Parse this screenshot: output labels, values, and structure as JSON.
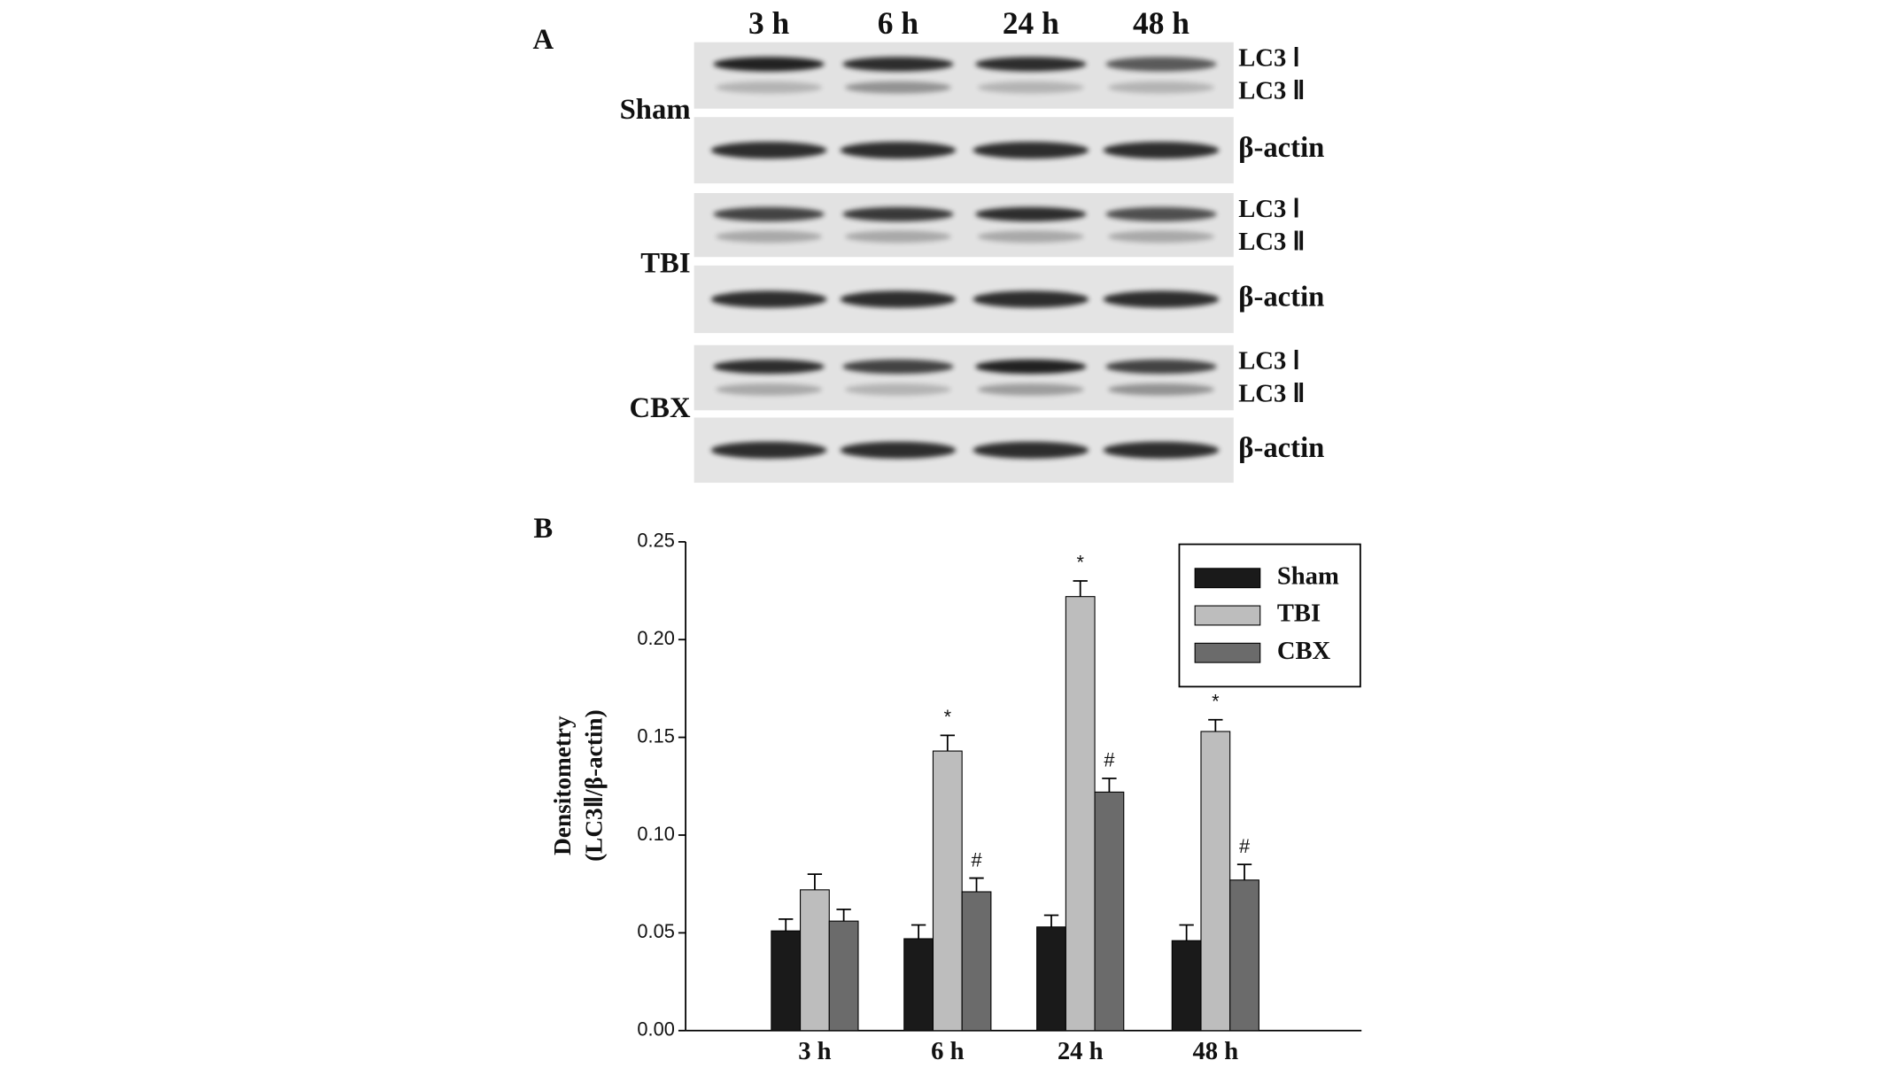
{
  "panel_a": {
    "label": "A",
    "lanes": [
      "3 h",
      "6 h",
      "24 h",
      "48 h"
    ],
    "groups": [
      {
        "name": "Sham",
        "bands": [
          "LC3 Ⅰ",
          "LC3 Ⅱ",
          "β-actin"
        ]
      },
      {
        "name": "TBI",
        "bands": [
          "LC3 Ⅰ",
          "LC3 Ⅱ",
          "β-actin"
        ]
      },
      {
        "name": "CBX",
        "bands": [
          "LC3 Ⅰ",
          "LC3 Ⅱ",
          "β-actin"
        ]
      }
    ]
  },
  "panel_b_label": "B",
  "chart_data": {
    "type": "bar",
    "ylabel": [
      "Densitometry",
      "(LC3Ⅱ/β-actin)"
    ],
    "categories": [
      "3 h",
      "6 h",
      "24 h",
      "48 h"
    ],
    "series": [
      {
        "name": "Sham",
        "color": "#1a1a1a",
        "values": [
          0.051,
          0.047,
          0.053,
          0.046
        ],
        "errors": [
          0.006,
          0.007,
          0.006,
          0.008
        ],
        "annotations": [
          null,
          null,
          null,
          null
        ]
      },
      {
        "name": "TBI",
        "color": "#bdbdbd",
        "values": [
          0.072,
          0.143,
          0.222,
          0.153
        ],
        "errors": [
          0.008,
          0.008,
          0.008,
          0.006
        ],
        "annotations": [
          null,
          "*",
          "*",
          "*"
        ]
      },
      {
        "name": "CBX",
        "color": "#6b6b6b",
        "values": [
          0.056,
          0.071,
          0.122,
          0.077
        ],
        "errors": [
          0.006,
          0.007,
          0.007,
          0.008
        ],
        "annotations": [
          null,
          "#",
          "#",
          "#"
        ]
      }
    ],
    "ylim": [
      0,
      0.25
    ],
    "yticks": [
      {
        "value": 0,
        "label": "0.00"
      },
      {
        "value": 0.05,
        "label": "0.05"
      },
      {
        "value": 0.1,
        "label": "0.10"
      },
      {
        "value": 0.15,
        "label": "0.15"
      },
      {
        "value": 0.2,
        "label": "0.20"
      },
      {
        "value": 0.25,
        "label": "0.25"
      }
    ],
    "legend": "upper right"
  }
}
